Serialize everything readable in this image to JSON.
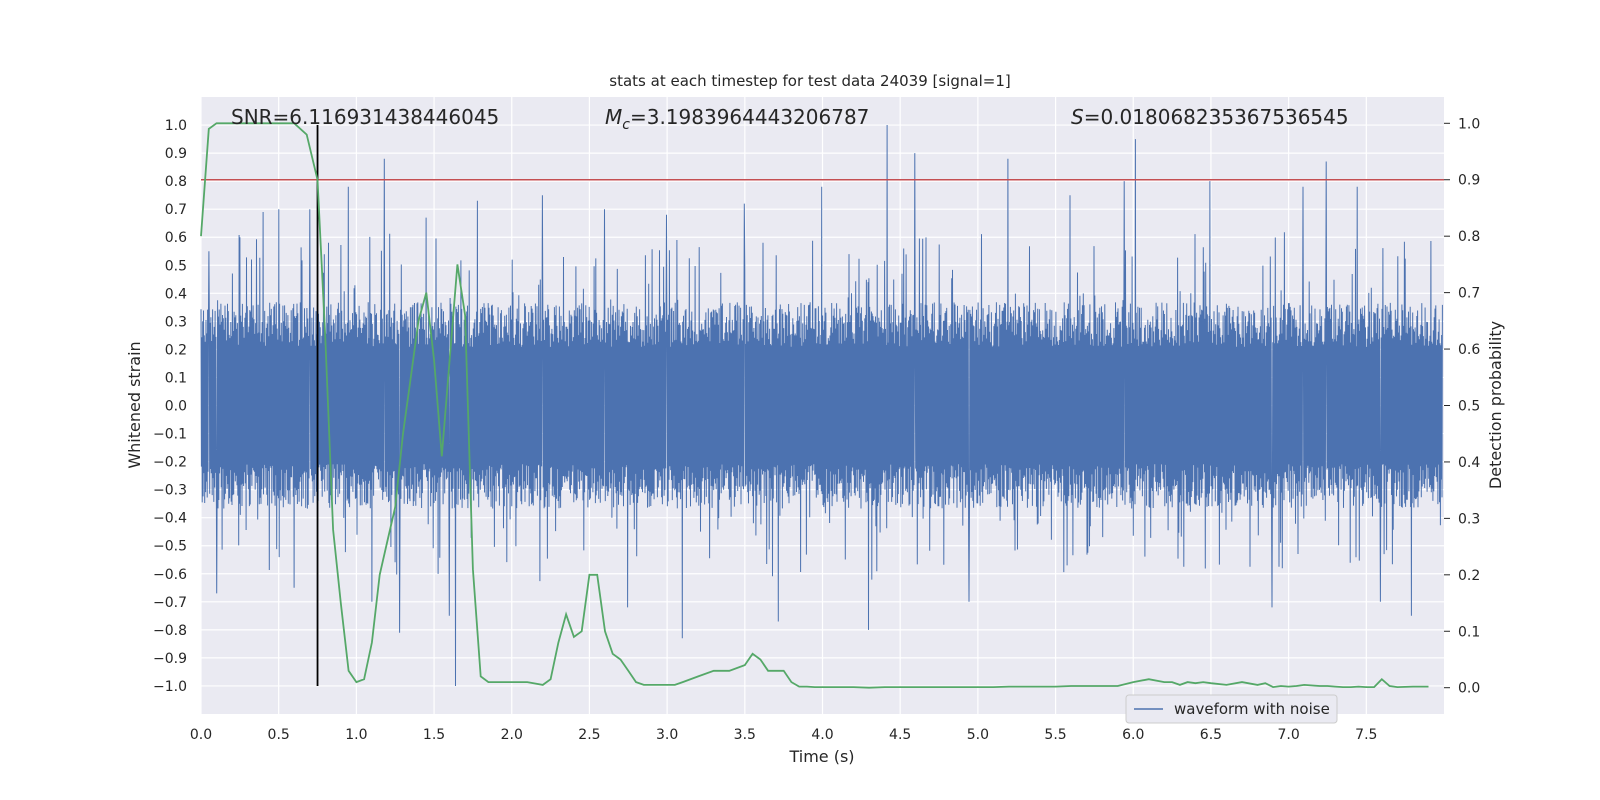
{
  "chart_data": {
    "type": "line",
    "title": "stats at each timestep for test data 24039 [signal=1]",
    "xlabel": "Time (s)",
    "ylabel": "Whitened strain",
    "y2label": "Detection probability",
    "xlim": [
      0.0,
      8.0
    ],
    "ylim": [
      -1.1,
      1.1
    ],
    "y2lim": [
      -0.0466,
      1.0466
    ],
    "xticks": [
      "0.0",
      "0.5",
      "1.0",
      "1.5",
      "2.0",
      "2.5",
      "3.0",
      "3.5",
      "4.0",
      "4.5",
      "5.0",
      "5.5",
      "6.0",
      "6.5",
      "7.0",
      "7.5"
    ],
    "yticks": [
      "1.0",
      "0.9",
      "0.8",
      "0.7",
      "0.6",
      "0.5",
      "0.4",
      "0.3",
      "0.2",
      "0.1",
      "0.0",
      "-0.1",
      "-0.2",
      "-0.3",
      "-0.4",
      "-0.5",
      "-0.6",
      "-0.7",
      "-0.8",
      "-0.9",
      "-1.0"
    ],
    "y2ticks": [
      "1.0",
      "0.9",
      "0.8",
      "0.7",
      "0.6",
      "0.5",
      "0.4",
      "0.3",
      "0.2",
      "0.1",
      "0.0"
    ],
    "grid": true,
    "legend_position": "lower-right",
    "annotations": {
      "snr": "SNR=6.116931438446045",
      "mc_symbol": "M",
      "mc_sub": "c",
      "mc_value": "=3.1983964443206787",
      "s_symbol": "S",
      "s_value": "=0.018068235367536545"
    },
    "vline_time": 0.75,
    "threshold_probability": 0.9,
    "waveform": {
      "name": "waveform with noise",
      "color": "#4c72b0",
      "typical_envelope": 0.38,
      "peaks": [
        {
          "t": 0.05,
          "v": 0.55
        },
        {
          "t": 0.1,
          "v": -0.67
        },
        {
          "t": 0.25,
          "v": 0.6
        },
        {
          "t": 0.4,
          "v": 0.69
        },
        {
          "t": 0.5,
          "v": 0.7
        },
        {
          "t": 0.6,
          "v": -0.65
        },
        {
          "t": 0.7,
          "v": 0.7
        },
        {
          "t": 0.95,
          "v": 0.78
        },
        {
          "t": 1.1,
          "v": -0.7
        },
        {
          "t": 1.18,
          "v": 0.88
        },
        {
          "t": 1.28,
          "v": -0.81
        },
        {
          "t": 1.45,
          "v": 0.67
        },
        {
          "t": 1.6,
          "v": -0.75
        },
        {
          "t": 1.64,
          "v": -1.0
        },
        {
          "t": 1.78,
          "v": 0.73
        },
        {
          "t": 2.2,
          "v": 0.75
        },
        {
          "t": 2.6,
          "v": 0.7
        },
        {
          "t": 2.75,
          "v": -0.72
        },
        {
          "t": 3.0,
          "v": 0.68
        },
        {
          "t": 3.1,
          "v": -0.83
        },
        {
          "t": 3.5,
          "v": 0.72
        },
        {
          "t": 3.72,
          "v": -0.77
        },
        {
          "t": 4.0,
          "v": 0.78
        },
        {
          "t": 4.3,
          "v": -0.8
        },
        {
          "t": 4.42,
          "v": 1.0
        },
        {
          "t": 4.6,
          "v": 0.9
        },
        {
          "t": 4.95,
          "v": -0.7
        },
        {
          "t": 5.2,
          "v": 0.88
        },
        {
          "t": 5.6,
          "v": 0.75
        },
        {
          "t": 5.95,
          "v": 0.8
        },
        {
          "t": 6.02,
          "v": 0.95
        },
        {
          "t": 6.5,
          "v": 0.8
        },
        {
          "t": 6.9,
          "v": -0.72
        },
        {
          "t": 7.1,
          "v": 0.78
        },
        {
          "t": 7.25,
          "v": 0.87
        },
        {
          "t": 7.45,
          "v": 0.78
        },
        {
          "t": 7.6,
          "v": -0.7
        },
        {
          "t": 7.8,
          "v": -0.75
        }
      ]
    },
    "probability": {
      "color": "#55a868",
      "x": [
        0.0,
        0.05,
        0.1,
        0.2,
        0.3,
        0.4,
        0.5,
        0.6,
        0.68,
        0.75,
        0.8,
        0.85,
        0.9,
        0.95,
        1.0,
        1.05,
        1.1,
        1.15,
        1.2,
        1.25,
        1.3,
        1.35,
        1.4,
        1.45,
        1.5,
        1.55,
        1.6,
        1.65,
        1.7,
        1.75,
        1.8,
        1.85,
        1.9,
        2.0,
        2.1,
        2.2,
        2.25,
        2.3,
        2.35,
        2.4,
        2.45,
        2.5,
        2.55,
        2.6,
        2.65,
        2.7,
        2.75,
        2.8,
        2.85,
        2.9,
        2.95,
        3.0,
        3.05,
        3.1,
        3.2,
        3.3,
        3.4,
        3.5,
        3.55,
        3.6,
        3.65,
        3.7,
        3.75,
        3.8,
        3.85,
        3.9,
        3.95,
        4.0,
        4.05,
        4.1,
        4.2,
        4.3,
        4.4,
        4.5,
        4.6,
        4.7,
        4.8,
        4.9,
        5.0,
        5.1,
        5.2,
        5.3,
        5.4,
        5.5,
        5.6,
        5.7,
        5.8,
        5.9,
        6.0,
        6.1,
        6.2,
        6.25,
        6.3,
        6.35,
        6.4,
        6.45,
        6.5,
        6.6,
        6.7,
        6.8,
        6.85,
        6.9,
        6.95,
        7.0,
        7.05,
        7.1,
        7.2,
        7.25,
        7.3,
        7.35,
        7.4,
        7.45,
        7.5,
        7.55,
        7.6,
        7.65,
        7.7,
        7.8,
        7.9
      ],
      "y": [
        0.8,
        0.99,
        1.0,
        1.0,
        1.0,
        1.0,
        1.0,
        1.0,
        0.98,
        0.9,
        0.62,
        0.28,
        0.15,
        0.03,
        0.01,
        0.015,
        0.08,
        0.2,
        0.26,
        0.32,
        0.45,
        0.55,
        0.65,
        0.7,
        0.58,
        0.41,
        0.58,
        0.75,
        0.66,
        0.21,
        0.02,
        0.01,
        0.01,
        0.01,
        0.01,
        0.005,
        0.015,
        0.08,
        0.13,
        0.09,
        0.1,
        0.2,
        0.2,
        0.1,
        0.06,
        0.05,
        0.03,
        0.01,
        0.005,
        0.005,
        0.005,
        0.005,
        0.005,
        0.01,
        0.02,
        0.03,
        0.03,
        0.04,
        0.06,
        0.05,
        0.03,
        0.03,
        0.03,
        0.01,
        0.002,
        0.002,
        0.001,
        0.001,
        0.001,
        0.001,
        0.001,
        0.0,
        0.001,
        0.001,
        0.001,
        0.001,
        0.001,
        0.001,
        0.001,
        0.001,
        0.002,
        0.002,
        0.002,
        0.002,
        0.003,
        0.003,
        0.003,
        0.003,
        0.01,
        0.015,
        0.01,
        0.01,
        0.005,
        0.01,
        0.008,
        0.01,
        0.008,
        0.005,
        0.01,
        0.005,
        0.008,
        0.001,
        0.003,
        0.002,
        0.003,
        0.005,
        0.003,
        0.003,
        0.002,
        0.001,
        0.001,
        0.002,
        0.001,
        0.001,
        0.015,
        0.003,
        0.001,
        0.002,
        0.002
      ]
    }
  }
}
